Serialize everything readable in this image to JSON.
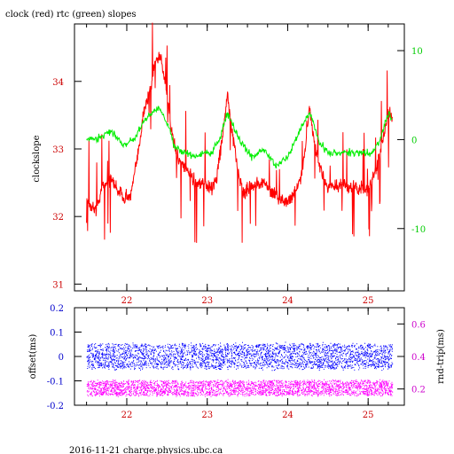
{
  "figure": {
    "title": "clock (red) rtc (green) slopes",
    "footer": "2016-11-21 charge.physics.ubc.ca"
  },
  "colors": {
    "clock": "#ff0000",
    "rtc": "#00ee00",
    "offset": "#0000ff",
    "rndtrip": "#ff00ff",
    "axis": "#000000",
    "left_ticks_top": "#cc0000",
    "right_ticks_top": "#00cc00",
    "x_ticks": "#cc0000",
    "left_ticks_bottom": "#0000cc",
    "right_ticks_bottom": "#cc00cc"
  },
  "chart_data": [
    {
      "type": "line",
      "ylabel_left": "clockslope",
      "ylabel_right": "",
      "xlim": [
        21.35,
        25.45
      ],
      "ylim_left": [
        30.9,
        34.85
      ],
      "ylim_right": [
        -17,
        13
      ],
      "x_ticks": [
        "22",
        "23",
        "24",
        "25"
      ],
      "y_ticks_left": [
        "31",
        "32",
        "33",
        "34"
      ],
      "y_ticks_right": [
        "-10",
        "0",
        "10"
      ],
      "grid": false,
      "series": [
        {
          "axis": "left",
          "x": [
            21.5,
            21.62,
            21.7,
            21.8,
            21.95,
            22.05,
            22.15,
            22.2,
            22.3,
            22.35,
            22.42,
            22.5,
            22.55,
            22.6,
            22.65,
            22.75,
            22.85,
            22.95,
            23.05,
            23.12,
            23.2,
            23.25,
            23.3,
            23.38,
            23.45,
            23.55,
            23.7,
            23.85,
            24.0,
            24.15,
            24.22,
            24.27,
            24.33,
            24.4,
            24.5,
            24.6,
            24.75,
            24.9,
            25.0,
            25.1,
            25.18,
            25.25,
            25.3
          ],
          "values": [
            32.2,
            32.1,
            32.45,
            32.55,
            32.3,
            32.3,
            33.0,
            33.5,
            33.9,
            34.3,
            34.4,
            33.8,
            33.3,
            33.0,
            32.8,
            32.7,
            32.5,
            32.5,
            32.4,
            32.6,
            33.3,
            33.8,
            33.3,
            32.7,
            32.35,
            32.45,
            32.5,
            32.3,
            32.2,
            32.5,
            33.0,
            33.6,
            33.1,
            32.7,
            32.45,
            32.45,
            32.45,
            32.4,
            32.4,
            32.7,
            33.1,
            33.5,
            33.5
          ]
        },
        {
          "axis": "right",
          "x": [
            21.5,
            21.6,
            21.7,
            21.8,
            21.95,
            22.1,
            22.2,
            22.3,
            22.4,
            22.5,
            22.6,
            22.75,
            22.85,
            22.95,
            23.05,
            23.15,
            23.25,
            23.4,
            23.55,
            23.7,
            23.85,
            24.0,
            24.1,
            24.2,
            24.28,
            24.38,
            24.5,
            24.65,
            24.8,
            24.95,
            25.05,
            25.15,
            25.25,
            25.3
          ],
          "values": [
            0,
            0,
            0.5,
            1,
            -0.5,
            0,
            2,
            3,
            3.5,
            2,
            -1,
            -1.5,
            -2,
            -1.5,
            -1.5,
            0,
            3,
            0,
            -2,
            -1,
            -3,
            -2,
            0,
            2,
            3,
            0,
            -1.5,
            -1.5,
            -1.5,
            -1.5,
            -1.5,
            0,
            3,
            2.5
          ]
        }
      ]
    },
    {
      "type": "scatter",
      "ylabel_left": "offset(ms)",
      "ylabel_right": "rnd-trip(ms)",
      "xlim": [
        21.35,
        25.45
      ],
      "ylim_left": [
        -0.2,
        0.2
      ],
      "ylim_right": [
        0.1,
        0.7
      ],
      "x_ticks": [
        "22",
        "23",
        "24",
        "25"
      ],
      "y_ticks_left": [
        "-0.2",
        "-0.1",
        "0",
        "0.1",
        "0.2"
      ],
      "y_ticks_right": [
        "0.2",
        "0.4",
        "0.6"
      ],
      "grid": false,
      "series": [
        {
          "axis": "left",
          "x_range": [
            21.5,
            25.3
          ],
          "center": 0.0,
          "spread": [
            -0.05,
            0.05
          ]
        },
        {
          "axis": "right",
          "x_range": [
            21.5,
            25.3
          ],
          "center": 0.2,
          "spread": [
            0.16,
            0.25
          ]
        }
      ]
    }
  ]
}
